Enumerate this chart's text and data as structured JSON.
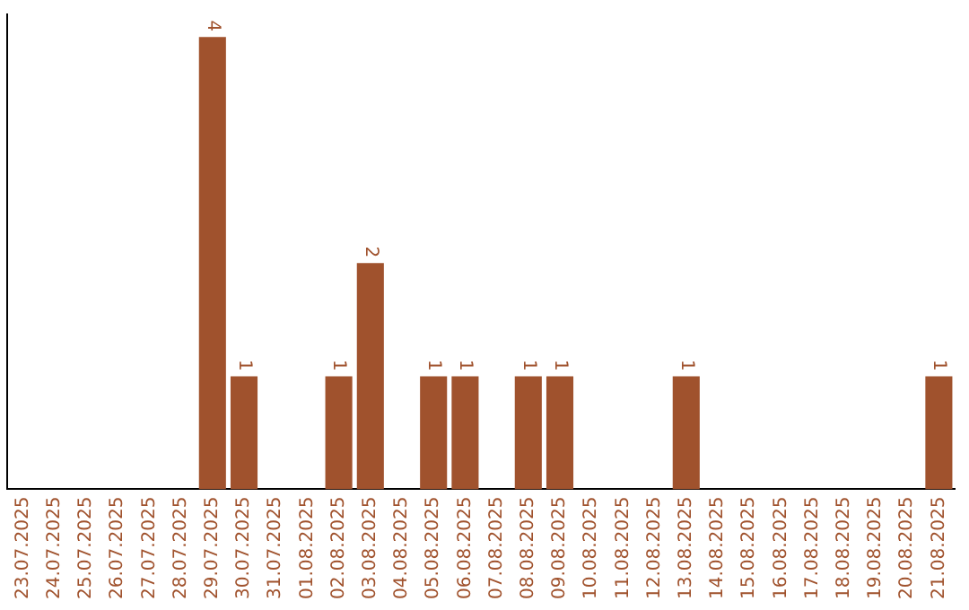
{
  "chart_data": {
    "type": "bar",
    "categories": [
      "23.07.2025",
      "24.07.2025",
      "25.07.2025",
      "26.07.2025",
      "27.07.2025",
      "28.07.2025",
      "29.07.2025",
      "30.07.2025",
      "31.07.2025",
      "01.08.2025",
      "02.08.2025",
      "03.08.2025",
      "04.08.2025",
      "05.08.2025",
      "06.08.2025",
      "07.08.2025",
      "08.08.2025",
      "09.08.2025",
      "10.08.2025",
      "11.08.2025",
      "12.08.2025",
      "13.08.2025",
      "14.08.2025",
      "15.08.2025",
      "16.08.2025",
      "17.08.2025",
      "18.08.2025",
      "19.08.2025",
      "20.08.2025",
      "21.08.2025"
    ],
    "values": [
      0,
      0,
      0,
      0,
      0,
      0,
      4,
      1,
      0,
      0,
      1,
      2,
      0,
      1,
      1,
      0,
      1,
      1,
      0,
      0,
      0,
      1,
      0,
      0,
      0,
      0,
      0,
      0,
      0,
      1
    ],
    "value_labels": [
      null,
      null,
      null,
      null,
      null,
      null,
      "4",
      "1",
      null,
      null,
      "1",
      "2",
      null,
      "1",
      "1",
      null,
      "1",
      "1",
      null,
      null,
      null,
      "1",
      null,
      null,
      null,
      null,
      null,
      null,
      null,
      "1"
    ],
    "color": "#a0522d",
    "ylim": [
      0,
      4.2
    ],
    "tick_labels": "x",
    "grid": false,
    "legend": false
  }
}
